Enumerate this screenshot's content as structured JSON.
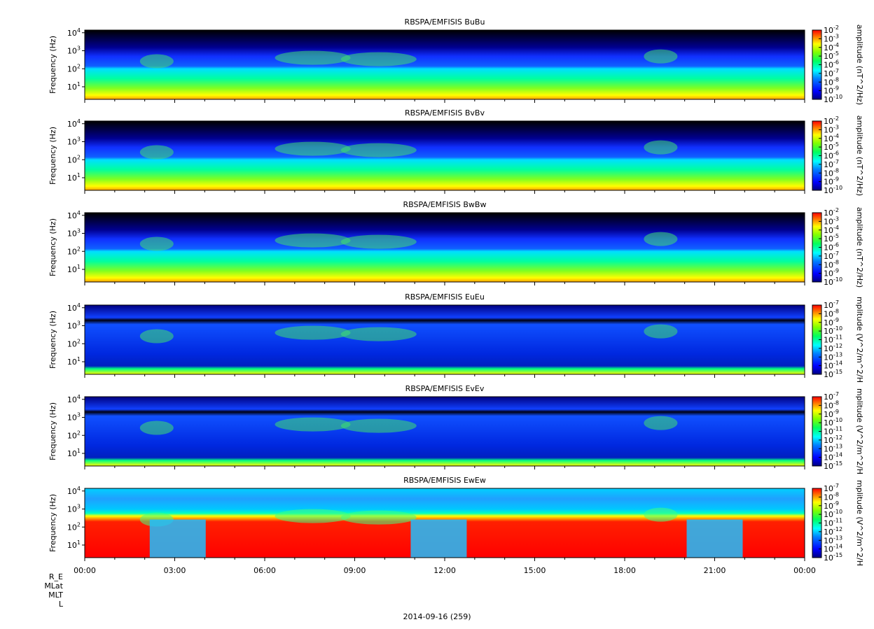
{
  "figure": {
    "date_label": "2014-09-16 (259)",
    "ephemeris_rows": [
      "R_E",
      "MLat",
      "MLT",
      "L"
    ],
    "time_ticks": [
      "00:00",
      "03:00",
      "06:00",
      "09:00",
      "12:00",
      "15:00",
      "18:00",
      "21:00",
      "00:00"
    ]
  },
  "chart_data": [
    {
      "type": "heatmap",
      "title": "RBSPA/EMFISIS  BuBu",
      "ylabel": "Frequency (Hz)",
      "yscale": "log",
      "ylim": [
        2,
        14000
      ],
      "yticks": [
        "10^1",
        "10^2",
        "10^3",
        "10^4"
      ],
      "xlim": [
        "00:00",
        "24:00"
      ],
      "colorbar_label": "amplitude (nT^2/Hz)",
      "colorbar_ticks": [
        "10^-2",
        "10^-3",
        "10^-4",
        "10^-5",
        "10^-6",
        "10^-7",
        "10^-8",
        "10^-9",
        "10^-10"
      ],
      "colorbar_range": [
        1e-10,
        0.01
      ],
      "colors": [
        "#000080",
        "#0000ff",
        "#0080ff",
        "#00ffff",
        "#00ff80",
        "#80ff00",
        "#ffff00",
        "#ff8000",
        "#ff0000"
      ]
    },
    {
      "type": "heatmap",
      "title": "RBSPA/EMFISIS  BvBv",
      "ylabel": "Frequency (Hz)",
      "yscale": "log",
      "ylim": [
        2,
        14000
      ],
      "yticks": [
        "10^1",
        "10^2",
        "10^3",
        "10^4"
      ],
      "xlim": [
        "00:00",
        "24:00"
      ],
      "colorbar_label": "amplitude (nT^2/Hz)",
      "colorbar_ticks": [
        "10^-2",
        "10^-3",
        "10^-4",
        "10^-5",
        "10^-6",
        "10^-7",
        "10^-8",
        "10^-9",
        "10^-10"
      ],
      "colorbar_range": [
        1e-10,
        0.01
      ],
      "colors": [
        "#000080",
        "#0000ff",
        "#0080ff",
        "#00ffff",
        "#00ff80",
        "#80ff00",
        "#ffff00",
        "#ff8000",
        "#ff0000"
      ]
    },
    {
      "type": "heatmap",
      "title": "RBSPA/EMFISIS  BwBw",
      "ylabel": "Frequency (Hz)",
      "yscale": "log",
      "ylim": [
        2,
        14000
      ],
      "yticks": [
        "10^1",
        "10^2",
        "10^3",
        "10^4"
      ],
      "xlim": [
        "00:00",
        "24:00"
      ],
      "colorbar_label": "amplitude (nT^2/Hz)",
      "colorbar_ticks": [
        "10^-2",
        "10^-3",
        "10^-4",
        "10^-5",
        "10^-6",
        "10^-7",
        "10^-8",
        "10^-9",
        "10^-10"
      ],
      "colorbar_range": [
        1e-10,
        0.01
      ],
      "colors": [
        "#000080",
        "#0000ff",
        "#0080ff",
        "#00ffff",
        "#00ff80",
        "#80ff00",
        "#ffff00",
        "#ff8000",
        "#ff0000"
      ]
    },
    {
      "type": "heatmap",
      "title": "RBSPA/EMFISIS  EuEu",
      "ylabel": "Frequency (Hz)",
      "yscale": "log",
      "ylim": [
        2,
        14000
      ],
      "yticks": [
        "10^1",
        "10^2",
        "10^3",
        "10^4"
      ],
      "xlim": [
        "00:00",
        "24:00"
      ],
      "colorbar_label": "mplitude (V^2/m^2/H",
      "colorbar_ticks": [
        "10^-7",
        "10^-8",
        "10^-9",
        "10^-10",
        "10^-11",
        "10^-12",
        "10^-13",
        "10^-14",
        "10^-15"
      ],
      "colorbar_range": [
        1e-15,
        1e-07
      ],
      "colors": [
        "#000080",
        "#0000ff",
        "#0080ff",
        "#00ffff",
        "#00ff80",
        "#80ff00",
        "#ffff00",
        "#ff8000",
        "#ff0000"
      ]
    },
    {
      "type": "heatmap",
      "title": "RBSPA/EMFISIS  EvEv",
      "ylabel": "Frequency (Hz)",
      "yscale": "log",
      "ylim": [
        2,
        14000
      ],
      "yticks": [
        "10^1",
        "10^2",
        "10^3",
        "10^4"
      ],
      "xlim": [
        "00:00",
        "24:00"
      ],
      "colorbar_label": "mplitude (V^2/m^2/H",
      "colorbar_ticks": [
        "10^-7",
        "10^-8",
        "10^-9",
        "10^-10",
        "10^-11",
        "10^-12",
        "10^-13",
        "10^-14",
        "10^-15"
      ],
      "colorbar_range": [
        1e-15,
        1e-07
      ],
      "colors": [
        "#000080",
        "#0000ff",
        "#0080ff",
        "#00ffff",
        "#00ff80",
        "#80ff00",
        "#ffff00",
        "#ff8000",
        "#ff0000"
      ]
    },
    {
      "type": "heatmap",
      "title": "RBSPA/EMFISIS  EwEw",
      "ylabel": "Frequency (Hz)",
      "yscale": "log",
      "ylim": [
        2,
        14000
      ],
      "yticks": [
        "10^1",
        "10^2",
        "10^3",
        "10^4"
      ],
      "xlim": [
        "00:00",
        "24:00"
      ],
      "colorbar_label": "mplitude (V^2/m^2/H",
      "colorbar_ticks": [
        "10^-7",
        "10^-8",
        "10^-9",
        "10^-10",
        "10^-11",
        "10^-12",
        "10^-13",
        "10^-14",
        "10^-15"
      ],
      "colorbar_range": [
        1e-15,
        1e-07
      ],
      "colors": [
        "#000080",
        "#0000ff",
        "#0080ff",
        "#00ffff",
        "#00ff80",
        "#80ff00",
        "#ffff00",
        "#ff8000",
        "#ff0000"
      ]
    }
  ]
}
